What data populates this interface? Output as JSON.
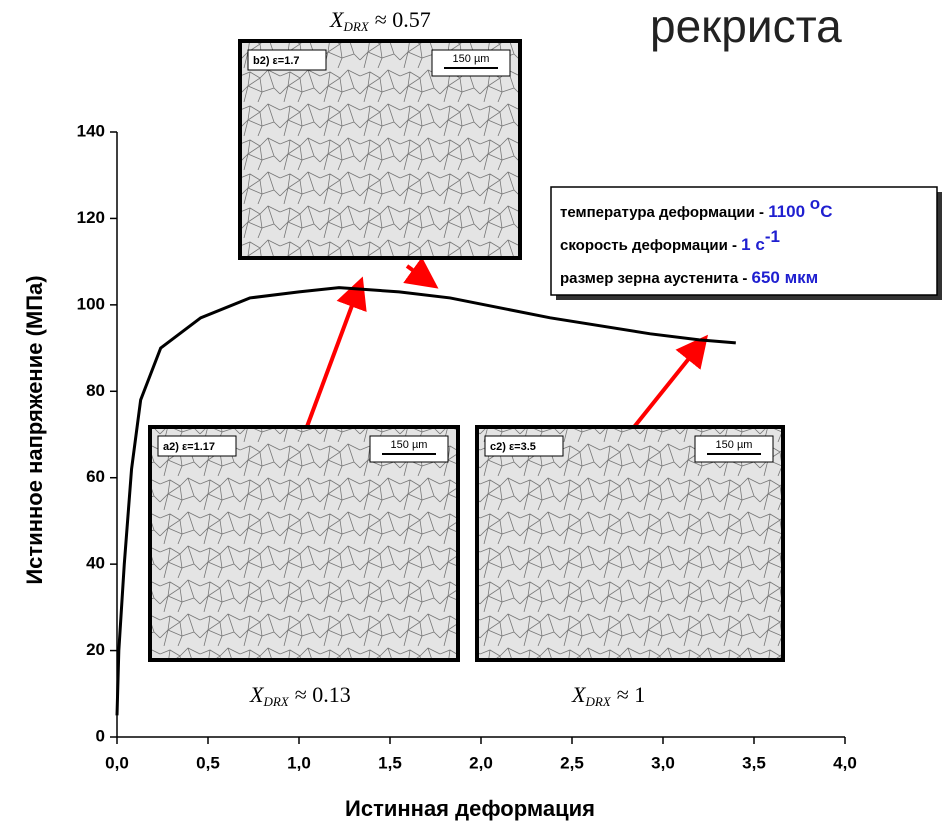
{
  "title_fragment": "рекриста",
  "chart_data": {
    "type": "line",
    "x_label": "Истинная деформация",
    "y_label": "Истинное напряжение (МПа)",
    "x": [
      0.0,
      0.01,
      0.04,
      0.08,
      0.13,
      0.24,
      0.46,
      0.73,
      1.0,
      1.22,
      1.55,
      1.83,
      2.38,
      2.93,
      3.2,
      3.4
    ],
    "values": [
      5,
      20,
      40,
      62,
      78,
      90,
      97,
      101.6,
      103,
      104,
      103,
      101.6,
      97,
      93.3,
      91.9,
      91.2
    ],
    "color": "#000000",
    "xlim": [
      0,
      4.0
    ],
    "ylim": [
      0,
      140
    ],
    "xticks": [
      {
        "value": 0,
        "label": "0,0"
      },
      {
        "value": 0.5,
        "label": "0,5"
      },
      {
        "value": 1.0,
        "label": "1,0"
      },
      {
        "value": 1.5,
        "label": "1,5"
      },
      {
        "value": 2.0,
        "label": "2,0"
      },
      {
        "value": 2.5,
        "label": "2,5"
      },
      {
        "value": 3.0,
        "label": "3,0"
      },
      {
        "value": 3.5,
        "label": "3,5"
      },
      {
        "value": 4.0,
        "label": "4,0"
      }
    ],
    "yticks": [
      0,
      20,
      40,
      60,
      80,
      100,
      120,
      140
    ],
    "insets": [
      {
        "label": "b2) ε=1.7",
        "scale": "150 µm",
        "symbol": "X",
        "subscript": "DRX",
        "fraction": "≈ 0.57"
      },
      {
        "label": "a2) ε=1.17",
        "scale": "150 µm",
        "symbol": "X",
        "subscript": "DRX",
        "fraction": "≈ 0.13"
      },
      {
        "label": "c2) ε=3.5",
        "scale": "150 µm",
        "symbol": "X",
        "subscript": "DRX",
        "fraction": "≈ 1"
      }
    ],
    "conditions": [
      {
        "label": "температура деформации - ",
        "value": "1100 ",
        "sup": "o",
        "unit": "C"
      },
      {
        "label": "скорость деформации - ",
        "value": "1 с",
        "sup": "-1",
        "unit": null
      },
      {
        "label": "размер зерна аустенита - ",
        "value": "650 мкм",
        "sup": null,
        "unit": null
      }
    ]
  }
}
